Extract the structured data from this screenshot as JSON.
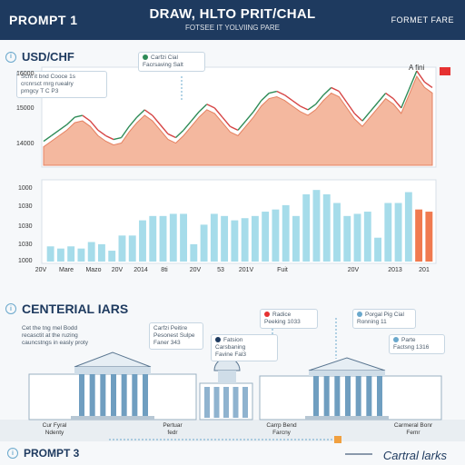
{
  "header": {
    "left": "PROMPT 1",
    "title": "DRAW, HLTO PRIT/CHAL",
    "subtitle": "FOTSEE IT YOLVIING PARE",
    "right": "FORMET FARE"
  },
  "section1": {
    "icon": "i",
    "label": "USD/CHF"
  },
  "callouts": {
    "top": "Carfzi Cial\nFacrsaving Salt",
    "left": "Scnt it bnd Cooce 1s\ncrcnrsct rnrg ruealry\nprngcy T C P3"
  },
  "line_y_ticks": [
    "14000",
    "15000",
    "16000"
  ],
  "bar_y_ticks": [
    "1000",
    "1030",
    "1030",
    "1030",
    "1000"
  ],
  "annotation_top_right": "A fini",
  "x_ticks": [
    "20V",
    "Mare",
    "Mazo",
    "20V",
    "2014",
    "8ti",
    "20V",
    "53",
    "201V",
    "Fuit",
    "20V",
    "2013",
    "201"
  ],
  "section2": {
    "icon": "i",
    "label": "CENTERIAL IARS"
  },
  "section2_note": "Cet the tng mel Bodd\nrecasctit at the ruzing\ncauncstngs in easly proty",
  "bank_callouts": [
    "Carfzi Peitire\nPesonest Sulpe\nFaner 343",
    "Fatsion Carsbaning\nFavine Fal3",
    "Radice\nPeeking 1033",
    "Porgal Pig Cial\nRonning 11",
    "Parte\nFactsng 1316"
  ],
  "building_labels": [
    "Cur Fyral\nNdenty",
    "Pertuar\nfedr",
    "Carrp Bend\nFarcny",
    "Carmeral Bonr\nFemr"
  ],
  "footer": {
    "left": "PROMPT 3",
    "right": "Cartral larks"
  },
  "colors": {
    "header": "#1e3a5f",
    "area": "#f0a07f",
    "bars": "#a6dcea",
    "accent": "#f07a50",
    "marker": "#e63131",
    "line_up": "#2e8b57",
    "line_down": "#d64545"
  },
  "chart_data": [
    {
      "type": "area",
      "title": "USD/CHF",
      "x": [
        0,
        1,
        2,
        3,
        4,
        5,
        6,
        7,
        8,
        9,
        10,
        11,
        12,
        13,
        14,
        15,
        16,
        17,
        18,
        19,
        20,
        21,
        22,
        23,
        24,
        25,
        26,
        27,
        28,
        29,
        30,
        31,
        32,
        33,
        34,
        35,
        36,
        37,
        38,
        39,
        40,
        41,
        42,
        43,
        44,
        45,
        46,
        47,
        48,
        49,
        50
      ],
      "y": [
        14500,
        14650,
        14800,
        14950,
        15150,
        15200,
        15050,
        14800,
        14650,
        14550,
        14600,
        14900,
        15150,
        15350,
        15200,
        14950,
        14700,
        14600,
        14800,
        15050,
        15300,
        15500,
        15400,
        15150,
        14900,
        14800,
        15050,
        15300,
        15600,
        15800,
        15850,
        15750,
        15600,
        15450,
        15350,
        15500,
        15750,
        15950,
        15850,
        15550,
        15250,
        15050,
        15300,
        15550,
        15800,
        15650,
        15400,
        15900,
        16400,
        16100,
        15950
      ],
      "ylim": [
        14000,
        16500
      ],
      "yticks": [
        "14000",
        "15000",
        "16000"
      ]
    },
    {
      "type": "bar",
      "values": [
        350,
        300,
        350,
        300,
        450,
        400,
        250,
        600,
        600,
        950,
        1050,
        1050,
        1100,
        1100,
        400,
        850,
        1100,
        1050,
        950,
        1000,
        1050,
        1150,
        1200,
        1300,
        1050,
        1550,
        1650,
        1550,
        1350,
        1050,
        1100,
        1150,
        550,
        1350,
        1350,
        1600,
        1200,
        1150
      ],
      "accent_indices": [
        36,
        37
      ],
      "ylim": [
        0,
        1800
      ],
      "yticks": [
        "1000",
        "1030",
        "1030",
        "1030",
        "1000"
      ]
    }
  ]
}
